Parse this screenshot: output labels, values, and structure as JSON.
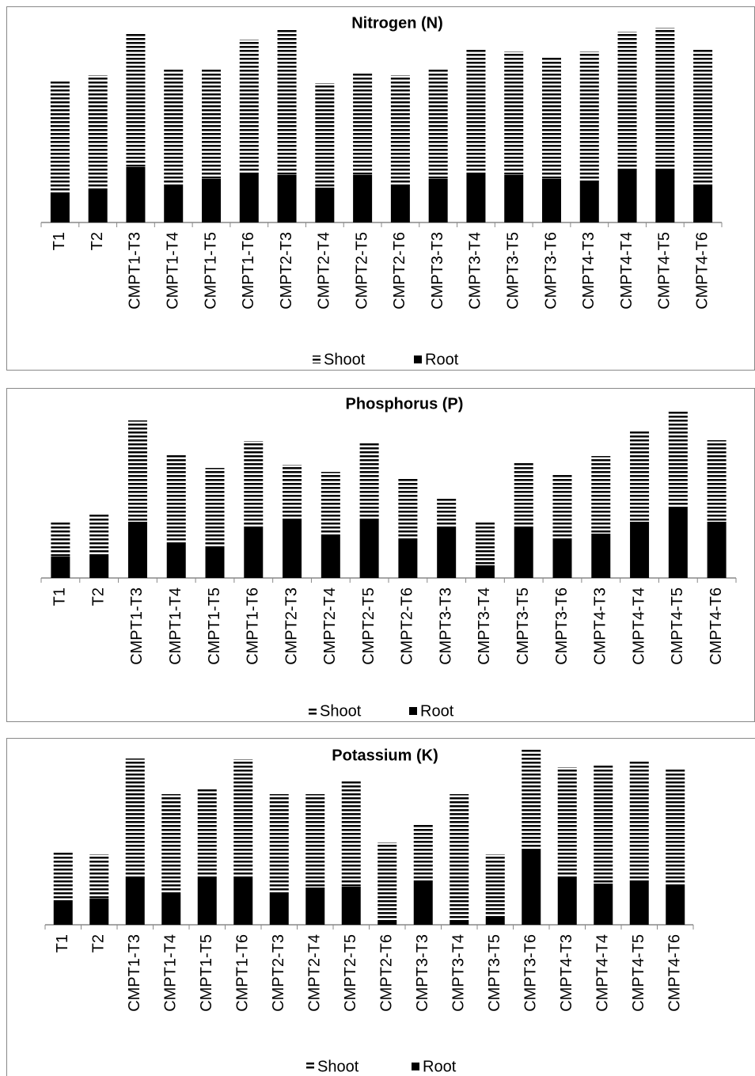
{
  "chart_data": [
    {
      "type": "stacked-bar",
      "title": "Nitrogen (N)",
      "ylim": [
        0,
        250
      ],
      "categories": [
        "T1",
        "T2",
        "CMPT1-T3",
        "CMPT1-T4",
        "CMPT1-T5",
        "CMPT1-T6",
        "CMPT2-T3",
        "CMPT2-T4",
        "CMPT2-T5",
        "CMPT2-T6",
        "CMPT3-T3",
        "CMPT3-T4",
        "CMPT3-T5",
        "CMPT3-T6",
        "CMPT4-T3",
        "CMPT4-T4",
        "CMPT4-T5",
        "CMPT4-T6"
      ],
      "series": [
        {
          "name": "Root",
          "color": "#000000",
          "values": [
            36,
            41,
            70,
            47,
            55,
            62,
            60,
            44,
            60,
            47,
            55,
            62,
            60,
            55,
            51,
            66,
            66,
            47
          ]
        },
        {
          "name": "Shoot",
          "color": "#000000",
          "pattern": "horizontal-stripes",
          "values": [
            142,
            145,
            169,
            146,
            138,
            169,
            183,
            132,
            130,
            139,
            138,
            158,
            156,
            154,
            165,
            175,
            180,
            173
          ]
        }
      ]
    },
    {
      "type": "stacked-bar",
      "title": "Phosphorus (P)",
      "ylim": [
        0,
        250
      ],
      "categories": [
        "T1",
        "T2",
        "CMPT1-T3",
        "CMPT1-T4",
        "CMPT1-T5",
        "CMPT1-T6",
        "CMPT2-T3",
        "CMPT2-T4",
        "CMPT2-T5",
        "CMPT2-T6",
        "CMPT3-T3",
        "CMPT3-T4",
        "CMPT3-T5",
        "CMPT3-T6",
        "CMPT4-T3",
        "CMPT4-T4",
        "CMPT4-T5",
        "CMPT4-T6"
      ],
      "series": [
        {
          "name": "Root",
          "color": "#000000",
          "values": [
            27,
            29,
            71,
            44,
            40,
            63,
            73,
            53,
            75,
            48,
            63,
            16,
            65,
            48,
            56,
            71,
            90,
            71
          ]
        },
        {
          "name": "Shoot",
          "color": "#000000",
          "pattern": "horizontal-stripes",
          "values": [
            44,
            53,
            128,
            111,
            99,
            110,
            70,
            81,
            95,
            77,
            38,
            55,
            82,
            84,
            98,
            115,
            121,
            103
          ]
        }
      ]
    },
    {
      "type": "stacked-bar",
      "title": "Potassium (K)",
      "ylim": [
        0,
        250
      ],
      "categories": [
        "T1",
        "T2",
        "CMPT1-T3",
        "CMPT1-T4",
        "CMPT1-T5",
        "CMPT1-T6",
        "CMPT2-T3",
        "CMPT2-T4",
        "CMPT2-T5",
        "CMPT2-T6",
        "CMPT3-T3",
        "CMPT3-T4",
        "CMPT3-T5",
        "CMPT3-T6",
        "CMPT4-T3",
        "CMPT4-T4",
        "CMPT4-T5",
        "CMPT4-T6"
      ],
      "series": [
        {
          "name": "Root",
          "color": "#000000",
          "values": [
            29,
            33,
            60,
            40,
            60,
            60,
            40,
            47,
            48,
            6,
            56,
            6,
            10,
            96,
            60,
            52,
            56,
            51
          ]
        },
        {
          "name": "Shoot",
          "color": "#000000",
          "pattern": "horizontal-stripes",
          "values": [
            63,
            56,
            150,
            125,
            113,
            149,
            125,
            118,
            135,
            98,
            71,
            159,
            79,
            125,
            139,
            150,
            150,
            147
          ]
        }
      ]
    }
  ]
}
